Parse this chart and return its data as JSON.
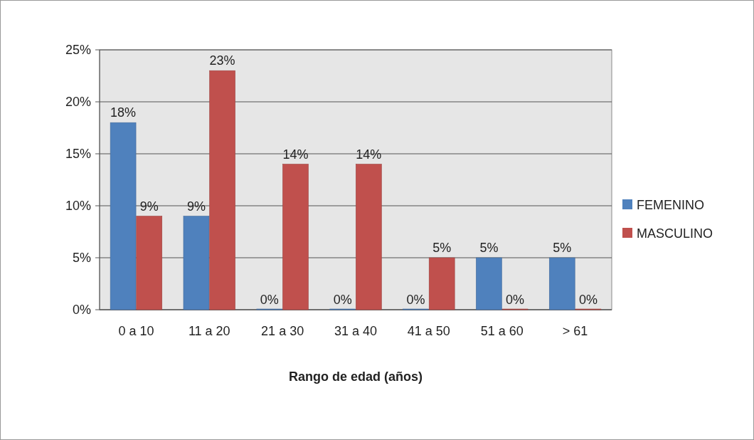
{
  "chart_data": {
    "type": "bar",
    "xlabel": "Rango de edad (años)",
    "categories": [
      "0 a 10",
      "11 a 20",
      "21 a 30",
      "31 a 40",
      "41 a 50",
      "51 a 60",
      "> 61"
    ],
    "series": [
      {
        "name": "FEMENINO",
        "color": "#4f81bd",
        "values": [
          18,
          9,
          0,
          0,
          0,
          5,
          5
        ],
        "value_labels": [
          "18%",
          "9%",
          "0%",
          "0%",
          "0%",
          "5%",
          "5%"
        ]
      },
      {
        "name": "MASCULINO",
        "color": "#c0504d",
        "values": [
          9,
          23,
          14,
          14,
          5,
          0,
          0
        ],
        "value_labels": [
          "9%",
          "23%",
          "14%",
          "14%",
          "5%",
          "0%",
          "0%"
        ]
      }
    ],
    "ylim": [
      0,
      25
    ],
    "yticks": [
      {
        "value": 0,
        "label": "0%"
      },
      {
        "value": 5,
        "label": "5%"
      },
      {
        "value": 10,
        "label": "10%"
      },
      {
        "value": 15,
        "label": "15%"
      },
      {
        "value": 20,
        "label": "20%"
      },
      {
        "value": 25,
        "label": "25%"
      }
    ],
    "grid": "y",
    "legend": "right"
  }
}
